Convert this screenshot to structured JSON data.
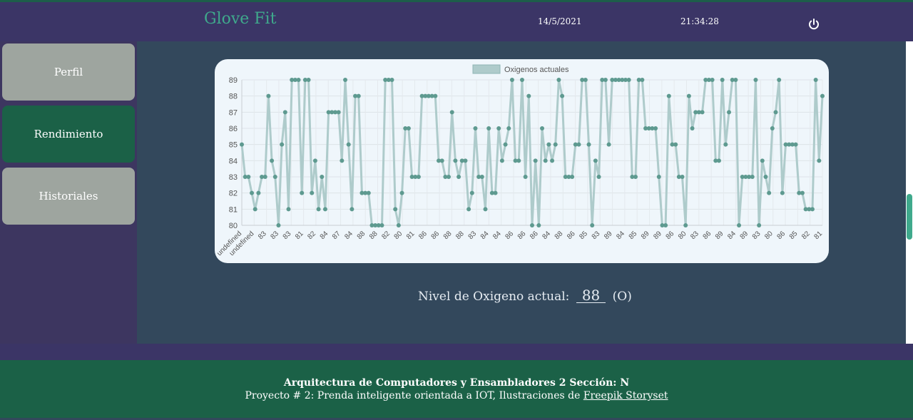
{
  "header": {
    "brand": "Glove Fit",
    "date": "14/5/2021",
    "time": "21:34:28",
    "power_icon": "power-icon"
  },
  "sidebar": {
    "items": [
      {
        "label": "Perfil",
        "active": false
      },
      {
        "label": "Rendimiento",
        "active": true
      },
      {
        "label": "Historiales",
        "active": false
      }
    ]
  },
  "oxygen": {
    "label": "Nivel de Oxigeno actual:",
    "value": "88",
    "unit": "(O)"
  },
  "footer": {
    "line1": "Arquitectura de Computadores y Ensambladores 2 Sección: N",
    "line2_prefix": "Proyecto # 2: Prenda inteligente orientada a IOT, Ilustraciones de ",
    "link": "Freepik Storyset"
  },
  "colors": {
    "header_bg": "#3b3566",
    "main_bg": "#33485c",
    "accent": "#3fa98c",
    "active_nav": "#1b6147",
    "inactive_nav": "#9ea59f",
    "line": "#aecbcb",
    "point": "#5e9a90"
  },
  "chart_data": {
    "type": "line",
    "legend": [
      "Oxigenos actuales"
    ],
    "ylim": [
      80,
      89
    ],
    "yticks": [
      80,
      81,
      82,
      83,
      84,
      85,
      86,
      87,
      88,
      89
    ],
    "x_ticklabels": [
      "undefined",
      "undefined",
      "83",
      "83",
      "83",
      "81",
      "82",
      "84",
      "87",
      "84",
      "88",
      "88",
      "82",
      "80",
      "81",
      "86",
      "86",
      "88",
      "88",
      "83",
      "84",
      "84",
      "86",
      "86",
      "86",
      "84",
      "88",
      "86",
      "85",
      "83",
      "89",
      "84",
      "85",
      "89",
      "89",
      "86",
      "80",
      "83",
      "86",
      "89",
      "84",
      "89",
      "83",
      "80",
      "86",
      "85",
      "82",
      "81"
    ],
    "series": [
      {
        "name": "Oxigenos actuales",
        "values": [
          85,
          83,
          83,
          82,
          81,
          82,
          83,
          83,
          88,
          84,
          83,
          80,
          85,
          87,
          81,
          89,
          89,
          89,
          82,
          89,
          89,
          82,
          84,
          81,
          83,
          81,
          87,
          87,
          87,
          87,
          84,
          89,
          85,
          81,
          88,
          88,
          82,
          82,
          82,
          80,
          80,
          80,
          80,
          89,
          89,
          89,
          81,
          80,
          82,
          86,
          86,
          83,
          83,
          83,
          88,
          88,
          88,
          88,
          88,
          84,
          84,
          83,
          83,
          87,
          84,
          83,
          84,
          84,
          81,
          82,
          86,
          83,
          83,
          81,
          86,
          82,
          82,
          86,
          84,
          85,
          86,
          89,
          84,
          84,
          89,
          83,
          88,
          80,
          84,
          80,
          86,
          84,
          85,
          84,
          85,
          89,
          88,
          83,
          83,
          83,
          85,
          85,
          89,
          89,
          85,
          80,
          84,
          83,
          89,
          89,
          85,
          89,
          89,
          89,
          89,
          89,
          89,
          83,
          83,
          89,
          89,
          86,
          86,
          86,
          86,
          83,
          80,
          80,
          88,
          85,
          85,
          83,
          83,
          80,
          88,
          86,
          87,
          87,
          87,
          89,
          89,
          89,
          84,
          84,
          89,
          85,
          87,
          89,
          89,
          80,
          83,
          83,
          83,
          83,
          89,
          80,
          84,
          83,
          82,
          86,
          87,
          89,
          82,
          85,
          85,
          85,
          85,
          82,
          82,
          81,
          81,
          81,
          89,
          84,
          88
        ]
      }
    ]
  }
}
